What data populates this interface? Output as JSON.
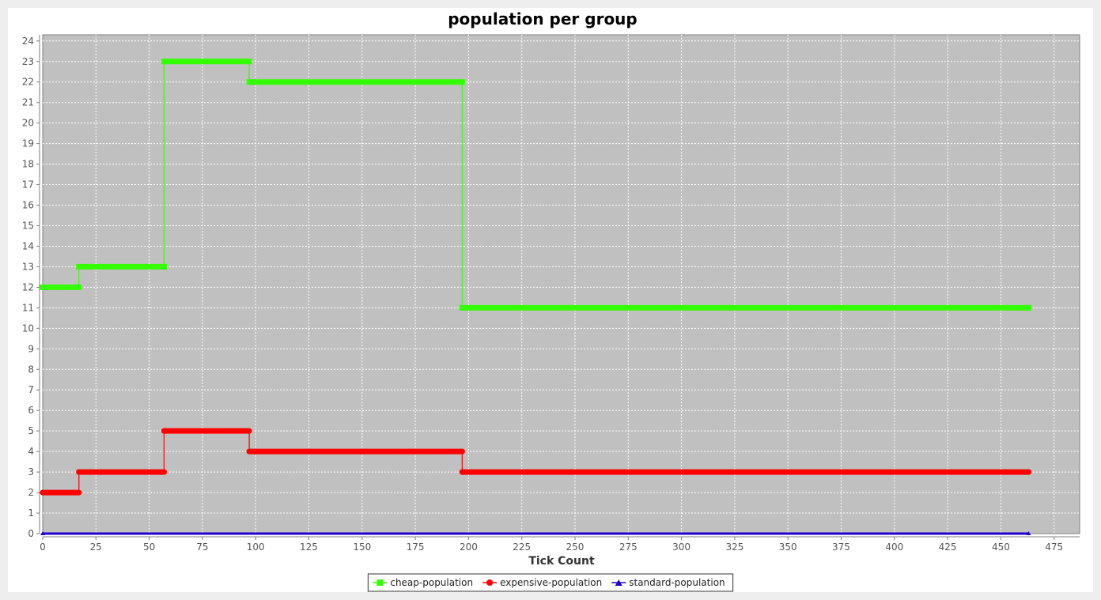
{
  "chart_data": {
    "type": "line",
    "title": "population per group",
    "xlabel": "Tick Count",
    "ylabel": "",
    "xlim": [
      0,
      487
    ],
    "ylim": [
      0,
      24.3
    ],
    "xticks": [
      0,
      25,
      50,
      75,
      100,
      125,
      150,
      175,
      200,
      225,
      250,
      275,
      300,
      325,
      350,
      375,
      400,
      425,
      450,
      475
    ],
    "yticks": [
      0,
      1,
      2,
      3,
      4,
      5,
      6,
      7,
      8,
      9,
      10,
      11,
      12,
      13,
      14,
      15,
      16,
      17,
      18,
      19,
      20,
      21,
      22,
      23,
      24
    ],
    "grid": true,
    "legend_position": "bottom",
    "series": [
      {
        "name": "cheap-population",
        "color": "#33ff00",
        "marker": "square",
        "segments": [
          {
            "x_start": 0,
            "x_end": 17,
            "y": 12
          },
          {
            "x_start": 17,
            "x_end": 57,
            "y": 13
          },
          {
            "x_start": 57,
            "x_end": 97,
            "y": 23
          },
          {
            "x_start": 97,
            "x_end": 197,
            "y": 22
          },
          {
            "x_start": 197,
            "x_end": 463,
            "y": 11
          }
        ]
      },
      {
        "name": "expensive-population",
        "color": "#ff0000",
        "marker": "circle",
        "segments": [
          {
            "x_start": 0,
            "x_end": 17,
            "y": 2
          },
          {
            "x_start": 17,
            "x_end": 57,
            "y": 3
          },
          {
            "x_start": 57,
            "x_end": 97,
            "y": 5
          },
          {
            "x_start": 97,
            "x_end": 197,
            "y": 4
          },
          {
            "x_start": 197,
            "x_end": 463,
            "y": 3
          }
        ]
      },
      {
        "name": "standard-population",
        "color": "#2200cc",
        "marker": "triangle",
        "segments": [
          {
            "x_start": 0,
            "x_end": 463,
            "y": 0
          }
        ]
      }
    ]
  }
}
